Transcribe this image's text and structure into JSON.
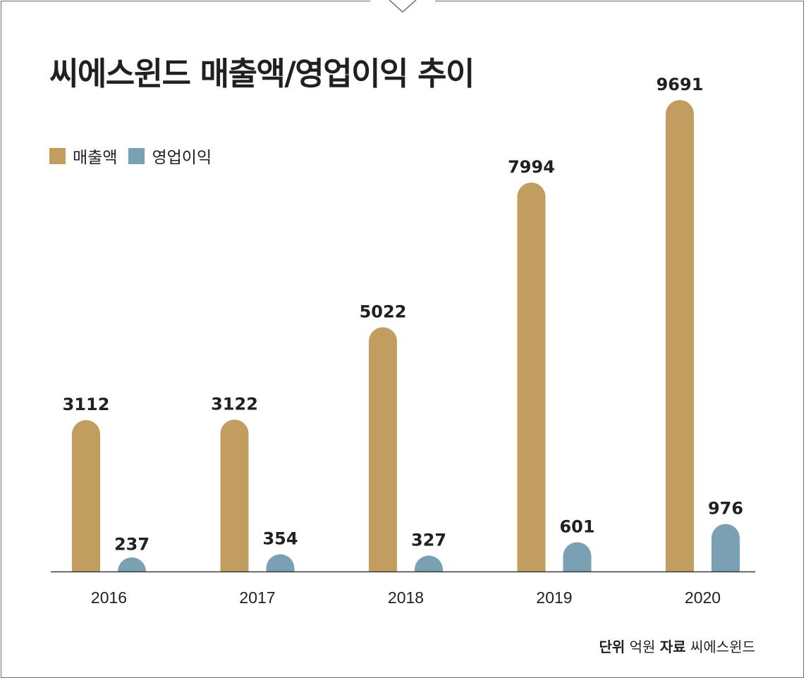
{
  "chart_data": {
    "type": "bar",
    "title": "씨에스윈드 매출액/영업이익 추이",
    "categories": [
      "2016",
      "2017",
      "2018",
      "2019",
      "2020"
    ],
    "series": [
      {
        "name": "매출액",
        "values": [
          3112,
          3122,
          5022,
          7994,
          9691
        ],
        "color": "#c19e60"
      },
      {
        "name": "영업이익",
        "values": [
          237,
          354,
          327,
          601,
          976
        ],
        "color": "#79a1b3"
      }
    ],
    "value_labels": {
      "매출액": [
        "3112",
        "3122",
        "5022",
        "7994",
        "9691"
      ],
      "영업이익": [
        "237",
        "354",
        "327",
        "601",
        "976"
      ]
    },
    "ylim": [
      0,
      10000
    ],
    "xlabel": "",
    "ylabel": "",
    "grid": false,
    "legend": "top-left"
  },
  "footer": {
    "unit_label": "단위",
    "unit_value": "억원",
    "source_label": "자료",
    "source_value": "씨에스윈드"
  },
  "colors": {
    "text": "#231f20",
    "frame": "#6d6d6d",
    "axis": "#3a3a3a"
  }
}
